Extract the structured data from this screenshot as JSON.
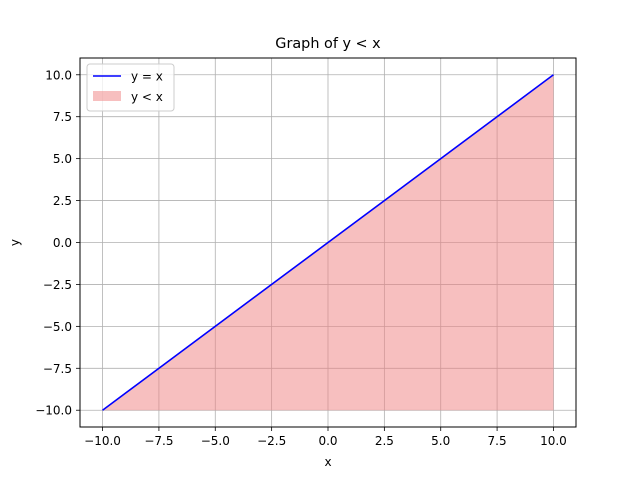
{
  "chart_data": {
    "type": "line",
    "title": "Graph of y < x",
    "xlabel": "x",
    "ylabel": "y",
    "xlim": [
      -11,
      11
    ],
    "ylim": [
      -11,
      11
    ],
    "xticks": [
      -10,
      -7.5,
      -5,
      -2.5,
      0,
      2.5,
      5,
      7.5,
      10
    ],
    "yticks": [
      -10,
      -7.5,
      -5,
      -2.5,
      0,
      2.5,
      5,
      7.5,
      10
    ],
    "xtick_labels": [
      "−10.0",
      "−7.5",
      "−5.0",
      "−2.5",
      "0.0",
      "2.5",
      "5.0",
      "7.5",
      "10.0"
    ],
    "ytick_labels": [
      "−10.0",
      "−7.5",
      "−5.0",
      "−2.5",
      "0.0",
      "2.5",
      "5.0",
      "7.5",
      "10.0"
    ],
    "grid": true,
    "legend_position": "top-left",
    "series": [
      {
        "name": "y = x",
        "kind": "line",
        "color": "#0000ff",
        "x": [
          -10,
          10
        ],
        "y": [
          -10,
          10
        ]
      },
      {
        "name": "y < x",
        "kind": "fill",
        "color": "#f08080",
        "x": [
          -10,
          10
        ],
        "y_upper": [
          -10,
          10
        ],
        "y_lower": [
          -10,
          -10
        ]
      }
    ]
  }
}
